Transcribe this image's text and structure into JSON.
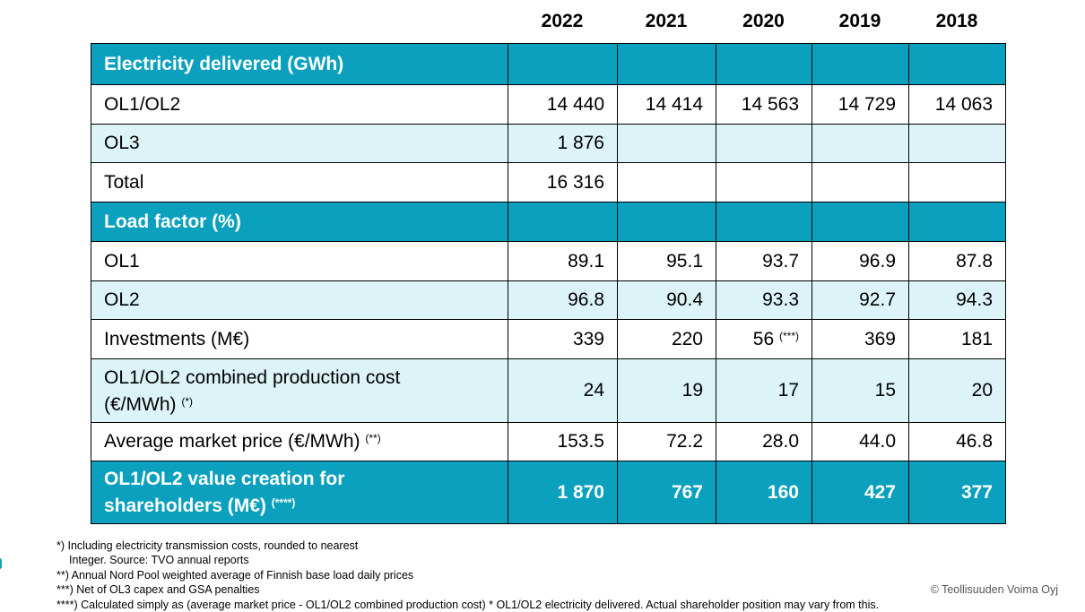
{
  "years": [
    "2022",
    "2021",
    "2020",
    "2019",
    "2018"
  ],
  "rows": [
    {
      "label": "Electricity delivered (GWh)",
      "values": [
        "",
        "",
        "",
        "",
        ""
      ]
    },
    {
      "label": "OL1/OL2",
      "values": [
        "14 440",
        "14 414",
        "14 563",
        "14 729",
        "14 063"
      ]
    },
    {
      "label": "OL3",
      "values": [
        "1 876",
        "",
        "",
        "",
        ""
      ]
    },
    {
      "label": "Total",
      "values": [
        "16 316",
        "",
        "",
        "",
        ""
      ]
    },
    {
      "label": "Load factor (%)",
      "values": [
        "",
        "",
        "",
        "",
        ""
      ]
    },
    {
      "label": "OL1",
      "values": [
        "89.1",
        "95.1",
        "93.7",
        "96.9",
        "87.8"
      ]
    },
    {
      "label": "OL2",
      "values": [
        "96.8",
        "90.4",
        "93.3",
        "92.7",
        "94.3"
      ]
    },
    {
      "label": "Investments (M€)",
      "values": [
        "339",
        "220",
        "56",
        "369",
        "181"
      ],
      "notes": {
        "2": "(***)"
      }
    },
    {
      "label_line1": "OL1/OL2 combined production cost",
      "label_line2": "(€/MWh)",
      "label_note": "(*)",
      "values": [
        "24",
        "19",
        "17",
        "15",
        "20"
      ]
    },
    {
      "label": "Average market price (€/MWh)",
      "label_note": "(**)",
      "values": [
        "153.5",
        "72.2",
        "28.0",
        "44.0",
        "46.8"
      ]
    },
    {
      "label_line1": "OL1/OL2 value creation for",
      "label_line2": "shareholders (M€)",
      "label_note": "(****)",
      "values": [
        "1 870",
        "767",
        "160",
        "427",
        "377"
      ]
    }
  ],
  "footnotes": [
    "*) Including electricity transmission costs, rounded to nearest",
    "    Integer. Source: TVO annual reports",
    "**) Annual Nord Pool weighted average of Finnish base load daily prices",
    "***) Net of OL3 capex and GSA penalties",
    "****) Calculated simply as (average market price - OL1/OL2 combined production cost) * OL1/OL2 electricity delivered. Actual shareholder position may vary from this."
  ],
  "copyright": "© Teollisuuden Voima Oyj",
  "colors": {
    "accent": "#0ba1be",
    "light_row": "#dcf4f7"
  }
}
